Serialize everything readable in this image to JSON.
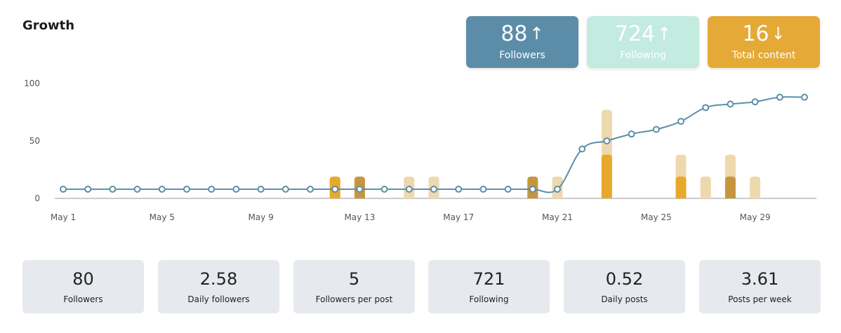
{
  "header": {
    "title": "Growth"
  },
  "summary_cards": [
    {
      "value": "88",
      "arrow": "↑",
      "label": "Followers",
      "color": "#5b8da8"
    },
    {
      "value": "724",
      "arrow": "↑",
      "label": "Following",
      "color": "#c3ebe0"
    },
    {
      "value": "16",
      "arrow": "↓",
      "label": "Total content",
      "color": "#e5a937"
    }
  ],
  "chart_data": {
    "type": "line",
    "title": "",
    "xlabel": "",
    "ylabel": "",
    "ylim": [
      0,
      100
    ],
    "yticks": [
      "0",
      "50",
      "100"
    ],
    "grid": false,
    "x": [
      "May 1",
      "May 2",
      "May 3",
      "May 4",
      "May 5",
      "May 6",
      "May 7",
      "May 8",
      "May 9",
      "May 10",
      "May 11",
      "May 12",
      "May 13",
      "May 14",
      "May 15",
      "May 16",
      "May 17",
      "May 18",
      "May 19",
      "May 20",
      "May 21",
      "May 22",
      "May 23",
      "May 24",
      "May 25",
      "May 26",
      "May 27",
      "May 28",
      "May 29",
      "May 30",
      "May 31"
    ],
    "xticks": [
      "May 1",
      "May 5",
      "May 9",
      "May 13",
      "May 17",
      "May 21",
      "May 25",
      "May 29"
    ],
    "line_series": {
      "color": "#5b8fa8",
      "values": [
        8,
        8,
        8,
        8,
        8,
        8,
        8,
        8,
        8,
        8,
        8,
        8,
        8,
        8,
        8,
        8,
        8,
        8,
        8,
        8,
        8,
        43,
        50,
        56,
        60,
        67,
        79,
        82,
        84,
        88,
        88
      ]
    },
    "bar_series": [
      {
        "color": "#eed8ae",
        "values": [
          0,
          0,
          0,
          0,
          0,
          0,
          0,
          0,
          0,
          0,
          0,
          19,
          19,
          0,
          19,
          19,
          0,
          0,
          0,
          19,
          19,
          0,
          77,
          0,
          0,
          38,
          19,
          38,
          19,
          0,
          0
        ]
      },
      {
        "color": "#e8a82b",
        "values": [
          0,
          0,
          0,
          0,
          0,
          0,
          0,
          0,
          0,
          0,
          0,
          19,
          0,
          0,
          0,
          0,
          0,
          0,
          0,
          0,
          0,
          0,
          38,
          0,
          0,
          19,
          0,
          0,
          0,
          0,
          0
        ]
      },
      {
        "color": "#c6963f",
        "values": [
          0,
          0,
          0,
          0,
          0,
          0,
          0,
          0,
          0,
          0,
          0,
          0,
          19,
          0,
          0,
          0,
          0,
          0,
          0,
          19,
          0,
          0,
          0,
          0,
          0,
          0,
          0,
          19,
          0,
          0,
          0
        ]
      }
    ]
  },
  "metrics": [
    {
      "value": "80",
      "label": "Followers"
    },
    {
      "value": "2.58",
      "label": "Daily followers"
    },
    {
      "value": "5",
      "label": "Followers per post"
    },
    {
      "value": "721",
      "label": "Following"
    },
    {
      "value": "0.52",
      "label": "Daily posts"
    },
    {
      "value": "3.61",
      "label": "Posts per week"
    }
  ]
}
